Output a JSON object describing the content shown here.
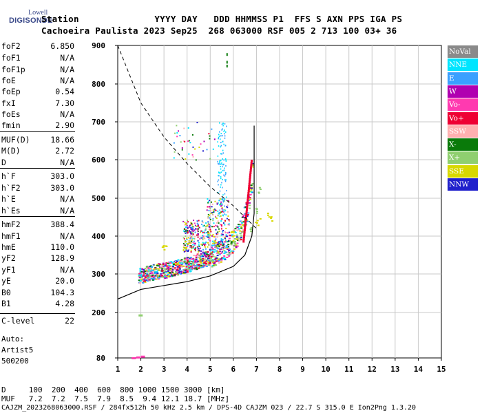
{
  "logo": {
    "line1": "Lowell",
    "line2": "DIGISONDE"
  },
  "header": {
    "line1": "Station              YYYY DAY   DDD HHMMSS P1  FFS S AXN PPS IGA PS",
    "line2": "Cachoeira Paulista 2023 Sep25  268 063000 RSF 005 2 713 100 03+ 36"
  },
  "params": [
    {
      "name": "foF2",
      "value": "6.850"
    },
    {
      "name": "foF1",
      "value": "N/A"
    },
    {
      "name": "foF1p",
      "value": "N/A"
    },
    {
      "name": "foE",
      "value": "N/A"
    },
    {
      "name": "foEp",
      "value": "0.54"
    },
    {
      "name": "fxI",
      "value": "7.30"
    },
    {
      "name": "foEs",
      "value": "N/A"
    },
    {
      "name": "fmin",
      "value": "2.90"
    },
    {
      "name": "MUF(D)",
      "value": "18.66"
    },
    {
      "name": "M(D)",
      "value": "2.72"
    },
    {
      "name": "D",
      "value": "N/A"
    },
    {
      "name": "h`F",
      "value": "303.0"
    },
    {
      "name": "h`F2",
      "value": "303.0"
    },
    {
      "name": "h`E",
      "value": "N/A"
    },
    {
      "name": "h`Es",
      "value": "N/A"
    },
    {
      "name": "hmF2",
      "value": "388.4"
    },
    {
      "name": "hmF1",
      "value": "N/A"
    },
    {
      "name": "hmE",
      "value": "110.0"
    },
    {
      "name": "yF2",
      "value": "128.9"
    },
    {
      "name": "yF1",
      "value": "N/A"
    },
    {
      "name": "yE",
      "value": "20.0"
    },
    {
      "name": "B0",
      "value": "104.3"
    },
    {
      "name": "B1",
      "value": "4.28"
    },
    {
      "name": "C-level",
      "value": "22"
    }
  ],
  "auto": {
    "line1": "Auto:",
    "line2": "Artist5",
    "line3": "500200"
  },
  "legend": [
    {
      "label": "NoVal",
      "color": "#8a8a8a"
    },
    {
      "label": "NNE",
      "color": "#00e5ff"
    },
    {
      "label": "E",
      "color": "#3aa0ff"
    },
    {
      "label": "W",
      "color": "#b000b0"
    },
    {
      "label": "Vo-",
      "color": "#ff3ab0"
    },
    {
      "label": "Vo+",
      "color": "#ee0033"
    },
    {
      "label": "SSW",
      "color": "#ffb0b0"
    },
    {
      "label": "X-",
      "color": "#0a7a0a"
    },
    {
      "label": "X+",
      "color": "#8fcf6f"
    },
    {
      "label": "SSE",
      "color": "#d8d800"
    },
    {
      "label": "NNW",
      "color": "#2020cc"
    }
  ],
  "bottom": {
    "line1": "D     100  200  400  600  800 1000 1500 3000 [km]",
    "line2": "MUF   7.2  7.2  7.5  7.9  8.5  9.4 12.1 18.7 [MHz]",
    "line3": "CAJZM_2023268063000.RSF / 284fx512h 50 kHz 2.5 km / DPS-4D CAJZM 023 / 22.7 S 315.0 E Ion2Png 1.3.20"
  },
  "chart_data": {
    "type": "scatter",
    "x_label_unit": "MHz",
    "y_label_unit": "km",
    "xlim": [
      1,
      15
    ],
    "ylim": [
      80,
      900
    ],
    "x_ticks": [
      1,
      2,
      3,
      4,
      5,
      6,
      7,
      8,
      9,
      10,
      11,
      12,
      13,
      14,
      15
    ],
    "y_ticks": [
      80,
      200,
      300,
      400,
      500,
      600,
      700,
      800,
      900
    ],
    "grid": true,
    "scale_y": "log-like ionogram height",
    "series": [
      {
        "name": "Vo+",
        "values": [
          [
            1.9,
            290
          ],
          [
            2.5,
            300
          ],
          [
            3.0,
            305
          ],
          [
            3.5,
            312
          ],
          [
            4.0,
            320
          ],
          [
            4.5,
            330
          ],
          [
            5.0,
            340
          ],
          [
            5.5,
            355
          ],
          [
            6.0,
            380
          ],
          [
            6.3,
            410
          ],
          [
            6.6,
            470
          ],
          [
            6.8,
            560
          ]
        ]
      },
      {
        "name": "X+",
        "values": [
          [
            2.3,
            300
          ],
          [
            3.0,
            308
          ],
          [
            4.0,
            322
          ],
          [
            5.0,
            345
          ],
          [
            6.0,
            385
          ],
          [
            6.7,
            420
          ],
          [
            7.0,
            470
          ],
          [
            7.1,
            520
          ]
        ]
      },
      {
        "name": "SSE",
        "values": [
          [
            3.0,
            370
          ],
          [
            4.0,
            380
          ],
          [
            5.0,
            395
          ],
          [
            6.0,
            405
          ],
          [
            6.5,
            440
          ],
          [
            7.0,
            445
          ],
          [
            7.5,
            450
          ]
        ]
      }
    ],
    "profile_curve": [
      [
        1.0,
        235
      ],
      [
        2.0,
        260
      ],
      [
        3.0,
        270
      ],
      [
        4.0,
        280
      ],
      [
        5.0,
        295
      ],
      [
        6.0,
        320
      ],
      [
        6.5,
        350
      ],
      [
        6.8,
        400
      ],
      [
        6.9,
        460
      ],
      [
        6.9,
        560
      ],
      [
        6.9,
        690
      ]
    ],
    "muf_curve": [
      [
        1.0,
        900
      ],
      [
        2.0,
        750
      ],
      [
        3.0,
        660
      ],
      [
        4.0,
        590
      ],
      [
        5.0,
        530
      ],
      [
        6.0,
        480
      ],
      [
        6.5,
        450
      ],
      [
        7.0,
        420
      ]
    ]
  }
}
